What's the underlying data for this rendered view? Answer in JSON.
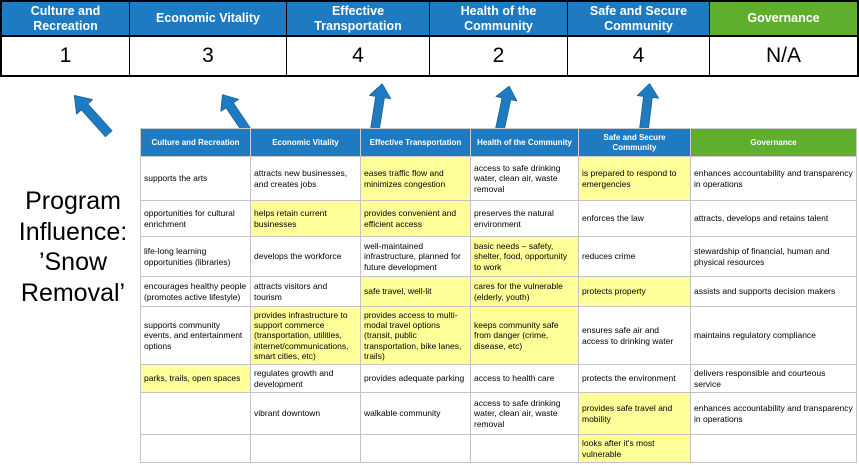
{
  "title": {
    "text": "Program\nInfluence:\n’Snow\nRemoval’"
  },
  "colors": {
    "header_blue": "#1F7BC1",
    "header_green": "#5FAF2F",
    "highlight_yellow": "#FFFF99",
    "arrow_blue": "#1F7BC1",
    "score_text": "#000000"
  },
  "summary": {
    "columns": [
      {
        "label": "Culture and Recreation",
        "score": "1",
        "theme": "blue"
      },
      {
        "label": "Economic Vitality",
        "score": "3",
        "theme": "blue"
      },
      {
        "label": "Effective Transportation",
        "score": "4",
        "theme": "blue"
      },
      {
        "label": "Health of the Community",
        "score": "2",
        "theme": "blue"
      },
      {
        "label": "Safe and Secure Community",
        "score": "4",
        "theme": "blue"
      },
      {
        "label": "Governance",
        "score": "N/A",
        "theme": "green"
      }
    ]
  },
  "matrix": {
    "headers": [
      {
        "label": "Culture and Recreation",
        "theme": "blue"
      },
      {
        "label": "Economic Vitality",
        "theme": "blue"
      },
      {
        "label": "Effective Transportation",
        "theme": "blue"
      },
      {
        "label": "Health of the Community",
        "theme": "blue"
      },
      {
        "label": "Safe and Secure Community",
        "theme": "blue"
      },
      {
        "label": "Governance",
        "theme": "green"
      }
    ],
    "rows": [
      [
        {
          "text": "supports the arts",
          "highlight": false
        },
        {
          "text": "attracts new businesses, and creates jobs",
          "highlight": false
        },
        {
          "text": "eases traffic flow and minimizes congestion",
          "highlight": true
        },
        {
          "text": "access to safe drinking water, clean air, waste removal",
          "highlight": false
        },
        {
          "text": "is prepared to respond to emergencies",
          "highlight": true
        },
        {
          "text": "enhances accountability and transparency in operations",
          "highlight": false
        }
      ],
      [
        {
          "text": "opportunities for cultural enrichment",
          "highlight": false
        },
        {
          "text": "helps retain current businesses",
          "highlight": true
        },
        {
          "text": "provides convenient and efficient access",
          "highlight": true
        },
        {
          "text": "preserves the natural environment",
          "highlight": false
        },
        {
          "text": "enforces the law",
          "highlight": false
        },
        {
          "text": "attracts, develops and retains talent",
          "highlight": false
        }
      ],
      [
        {
          "text": "life-long learning opportunities (libraries)",
          "highlight": false
        },
        {
          "text": "develops the workforce",
          "highlight": false
        },
        {
          "text": "well-maintained infrastructure, planned for future development",
          "highlight": false
        },
        {
          "text": "basic needs – safety, shelter, food, opportunity to work",
          "highlight": true
        },
        {
          "text": "reduces crime",
          "highlight": false
        },
        {
          "text": "stewardship of financial, human and physical resources",
          "highlight": false
        }
      ],
      [
        {
          "text": "encourages healthy people (promotes active lifestyle)",
          "highlight": false
        },
        {
          "text": "attracts visitors and tourism",
          "highlight": false
        },
        {
          "text": "safe travel, well-lit",
          "highlight": true
        },
        {
          "text": "cares for the vulnerable (elderly, youth)",
          "highlight": true
        },
        {
          "text": "protects property",
          "highlight": true
        },
        {
          "text": "assists and supports decision makers",
          "highlight": false
        }
      ],
      [
        {
          "text": "supports community events, and entertainment options",
          "highlight": false
        },
        {
          "text": "provides infrastructure to support commerce (transportation, utilities, internet/communications, smart cities, etc)",
          "highlight": true
        },
        {
          "text": "provides access to multi-modal travel options (transit, public transportation, bike lanes, trails)",
          "highlight": true
        },
        {
          "text": "keeps community safe from danger (crime, disease, etc)",
          "highlight": true
        },
        {
          "text": "ensures safe air and access to drinking water",
          "highlight": false
        },
        {
          "text": "maintains regulatory compliance",
          "highlight": false
        }
      ],
      [
        {
          "text": "parks, trails, open spaces",
          "highlight": true
        },
        {
          "text": "regulates growth and development",
          "highlight": false
        },
        {
          "text": "provides adequate parking",
          "highlight": false
        },
        {
          "text": "access to health care",
          "highlight": false
        },
        {
          "text": "protects the environment",
          "highlight": false
        },
        {
          "text": "delivers responsible and courteous service",
          "highlight": false
        }
      ],
      [
        {
          "text": "",
          "highlight": false
        },
        {
          "text": "vibrant downtown",
          "highlight": false
        },
        {
          "text": "walkable community",
          "highlight": false
        },
        {
          "text": "access to safe drinking water, clean air, waste removal",
          "highlight": false
        },
        {
          "text": "provides safe travel and mobility",
          "highlight": true
        },
        {
          "text": "enhances accountability and transparency in operations",
          "highlight": false
        }
      ],
      [
        {
          "text": "",
          "highlight": false
        },
        {
          "text": "",
          "highlight": false
        },
        {
          "text": "",
          "highlight": false
        },
        {
          "text": "",
          "highlight": false
        },
        {
          "text": "looks after it's most vulnerable",
          "highlight": true
        },
        {
          "text": "",
          "highlight": false
        }
      ]
    ]
  }
}
